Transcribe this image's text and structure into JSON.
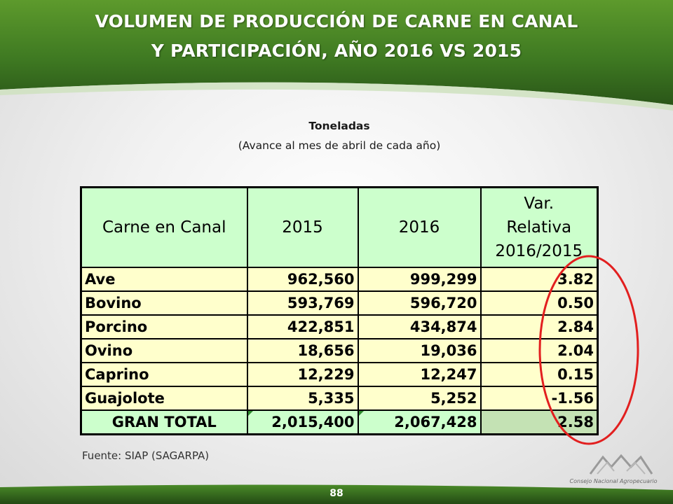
{
  "slide": {
    "title_line1": "VOLUMEN DE PRODUCCIÓN DE CARNE EN CANAL",
    "title_line2": "Y PARTICIPACIÓN, AÑO 2016 VS 2015",
    "units": "Toneladas",
    "period": "(Avance al mes de abril de cada año)",
    "source": "Fuente: SIAP (SAGARPA)",
    "page_number": "88",
    "logo_text": "Consejo Nacional Agropecuario"
  },
  "table": {
    "headers": {
      "col1": "Carne en Canal",
      "col2": "2015",
      "col3": "2016",
      "col4_line1": "Var.",
      "col4_line2": "Relativa",
      "col4_line3": "2016/2015"
    },
    "rows": [
      {
        "name": "Ave",
        "y2015": "962,560",
        "y2016": "999,299",
        "var": "3.82"
      },
      {
        "name": "Bovino",
        "y2015": "593,769",
        "y2016": "596,720",
        "var": "0.50"
      },
      {
        "name": "Porcino",
        "y2015": "422,851",
        "y2016": "434,874",
        "var": "2.84"
      },
      {
        "name": "Ovino",
        "y2015": "18,656",
        "y2016": "19,036",
        "var": "2.04"
      },
      {
        "name": "Caprino",
        "y2015": "12,229",
        "y2016": "12,247",
        "var": "0.15"
      },
      {
        "name": "Guajolote",
        "y2015": "5,335",
        "y2016": "5,252",
        "var": "-1.56"
      }
    ],
    "total": {
      "name": "GRAN TOTAL",
      "y2015": "2,015,400",
      "y2016": "2,067,428",
      "var": "2.58"
    }
  },
  "colors": {
    "header_green": "#2f6b1e",
    "header_fill": "#ccffcc",
    "row_fill": "#ffffcc",
    "highlight_ellipse": "#e21f1f"
  }
}
